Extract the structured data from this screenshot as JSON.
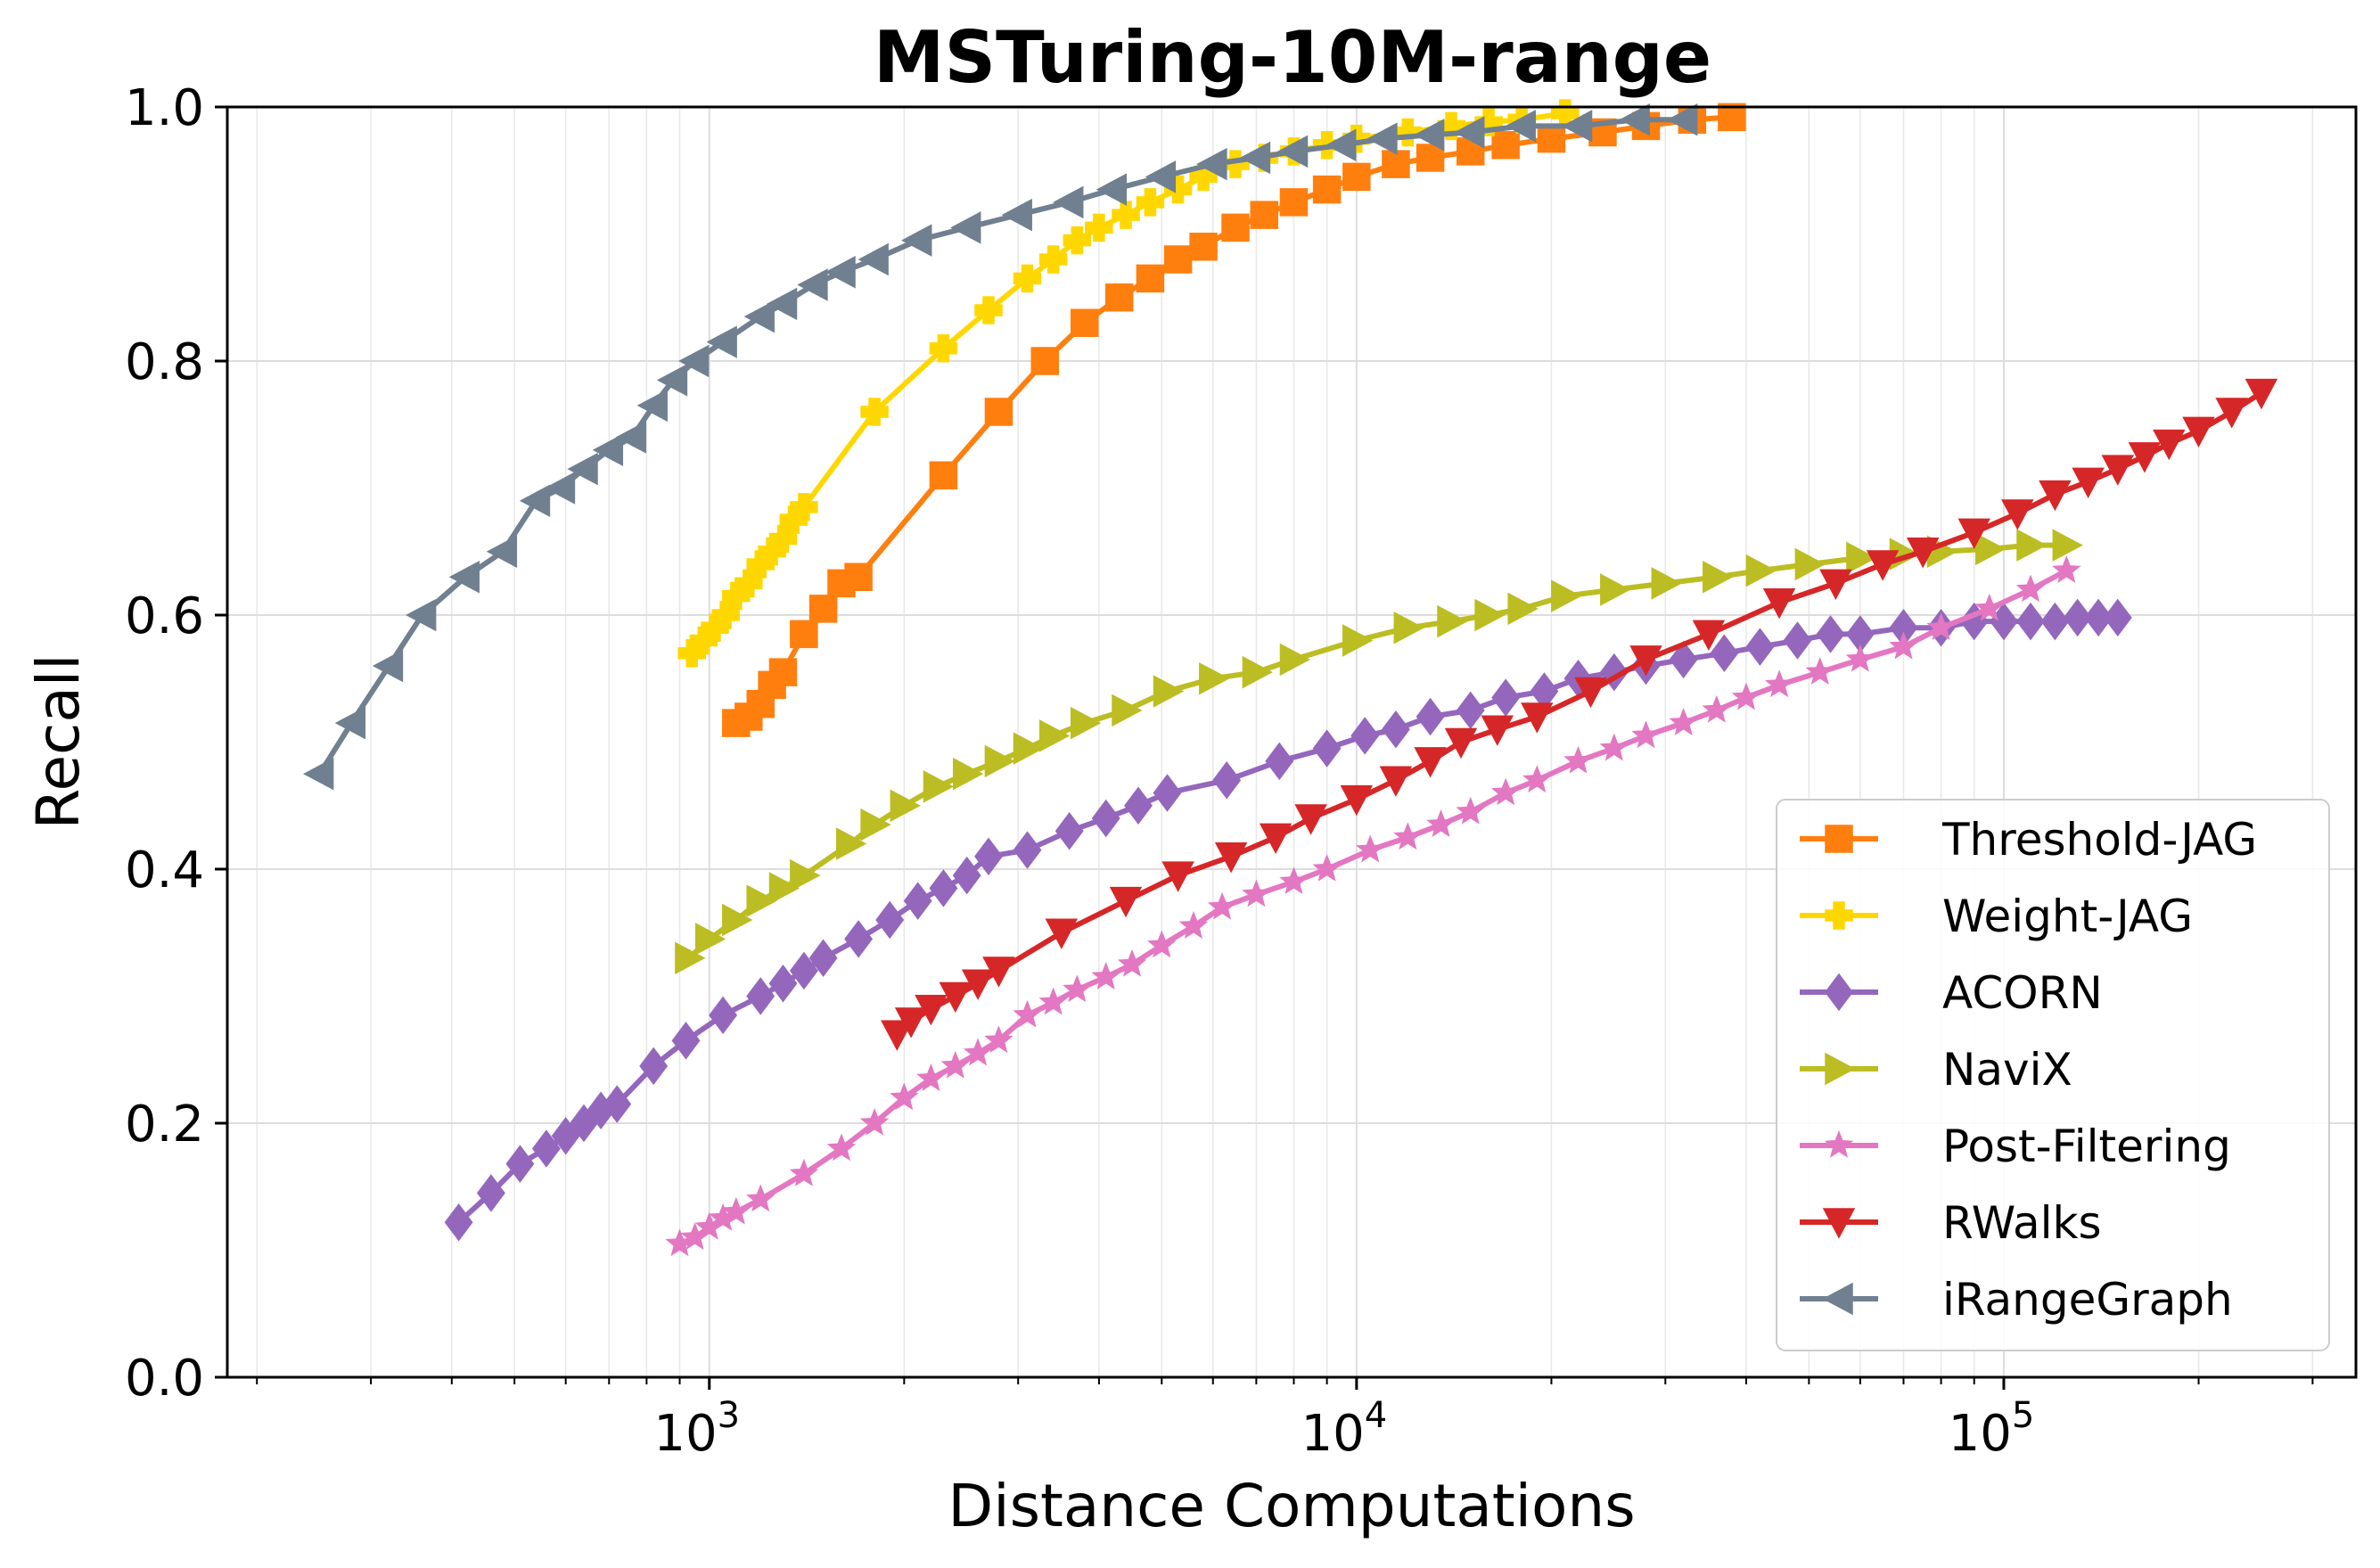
{
  "chart_data": {
    "type": "line",
    "title": "MSTuring-10M-range",
    "xlabel": "Distance Computations",
    "ylabel": "Recall",
    "xscale": "log",
    "xlim": [
      180,
      350000
    ],
    "ylim": [
      0.0,
      1.0
    ],
    "grid": true,
    "legend_position": "lower-right",
    "x_ticks": [
      {
        "base": "10",
        "exp": "3",
        "value": 1000
      },
      {
        "base": "10",
        "exp": "4",
        "value": 10000
      },
      {
        "base": "10",
        "exp": "5",
        "value": 100000
      }
    ],
    "y_ticks": [
      {
        "label": "0.0",
        "value": 0.0
      },
      {
        "label": "0.2",
        "value": 0.2
      },
      {
        "label": "0.4",
        "value": 0.4
      },
      {
        "label": "0.6",
        "value": 0.6
      },
      {
        "label": "0.8",
        "value": 0.8
      },
      {
        "label": "1.0",
        "value": 1.0
      }
    ],
    "series": [
      {
        "name": "Threshold-JAG",
        "color": "#ff7f0e",
        "marker": "square",
        "x": [
          1100,
          1150,
          1200,
          1250,
          1300,
          1400,
          1500,
          1600,
          1700,
          2300,
          2800,
          3300,
          3800,
          4300,
          4800,
          5300,
          5800,
          6500,
          7200,
          8000,
          9000,
          10000,
          11500,
          13000,
          15000,
          17000,
          20000,
          24000,
          28000,
          33000,
          38000
        ],
        "y": [
          0.515,
          0.52,
          0.53,
          0.545,
          0.555,
          0.585,
          0.605,
          0.625,
          0.63,
          0.71,
          0.76,
          0.8,
          0.83,
          0.85,
          0.865,
          0.88,
          0.89,
          0.905,
          0.915,
          0.925,
          0.935,
          0.945,
          0.955,
          0.96,
          0.965,
          0.97,
          0.975,
          0.98,
          0.985,
          0.99,
          0.992
        ]
      },
      {
        "name": "Weight-JAG",
        "color": "#ffd700",
        "marker": "plus",
        "x": [
          940,
          980,
          1020,
          1060,
          1100,
          1150,
          1200,
          1250,
          1300,
          1350,
          1400,
          1800,
          2300,
          2700,
          3100,
          3400,
          3700,
          4000,
          4400,
          4800,
          5300,
          5800,
          6500,
          7200,
          8000,
          9000,
          10000,
          12000,
          14000,
          16000,
          18000,
          21000
        ],
        "y": [
          0.57,
          0.58,
          0.59,
          0.6,
          0.615,
          0.625,
          0.64,
          0.65,
          0.66,
          0.675,
          0.685,
          0.76,
          0.81,
          0.84,
          0.865,
          0.88,
          0.895,
          0.905,
          0.915,
          0.925,
          0.935,
          0.945,
          0.955,
          0.96,
          0.965,
          0.97,
          0.975,
          0.98,
          0.985,
          0.988,
          0.99,
          0.995
        ]
      },
      {
        "name": "ACORN",
        "color": "#9467bd",
        "marker": "diamond",
        "x": [
          410,
          460,
          510,
          560,
          600,
          640,
          680,
          720,
          820,
          920,
          1050,
          1200,
          1300,
          1400,
          1500,
          1700,
          1900,
          2100,
          2300,
          2500,
          2700,
          3100,
          3600,
          4100,
          4600,
          5100,
          6300,
          7600,
          9000,
          10300,
          11500,
          13000,
          15000,
          17000,
          19500,
          22000,
          25000,
          28000,
          32000,
          37000,
          42000,
          48000,
          54000,
          60000,
          70000,
          80000,
          90000,
          100000,
          110000,
          120000,
          130000,
          140000,
          150000
        ],
        "y": [
          0.122,
          0.145,
          0.168,
          0.18,
          0.19,
          0.2,
          0.21,
          0.215,
          0.245,
          0.265,
          0.285,
          0.3,
          0.31,
          0.32,
          0.33,
          0.345,
          0.36,
          0.375,
          0.385,
          0.395,
          0.41,
          0.415,
          0.43,
          0.44,
          0.45,
          0.46,
          0.47,
          0.485,
          0.495,
          0.505,
          0.51,
          0.52,
          0.525,
          0.535,
          0.54,
          0.55,
          0.555,
          0.56,
          0.565,
          0.57,
          0.575,
          0.58,
          0.585,
          0.585,
          0.59,
          0.59,
          0.595,
          0.595,
          0.595,
          0.595,
          0.598,
          0.598,
          0.598
        ]
      },
      {
        "name": "NaviX",
        "color": "#bcbd22",
        "marker": "triangle-right",
        "x": [
          930,
          1000,
          1100,
          1200,
          1300,
          1400,
          1650,
          1800,
          2000,
          2250,
          2500,
          2800,
          3100,
          3400,
          3800,
          4400,
          5100,
          6000,
          7000,
          8000,
          10000,
          12000,
          14000,
          16000,
          18000,
          21000,
          25000,
          30000,
          36000,
          42000,
          50000,
          60000,
          70000,
          80000,
          95000,
          110000,
          125000
        ],
        "y": [
          0.33,
          0.345,
          0.36,
          0.375,
          0.385,
          0.395,
          0.42,
          0.435,
          0.45,
          0.465,
          0.475,
          0.485,
          0.495,
          0.505,
          0.515,
          0.525,
          0.54,
          0.55,
          0.555,
          0.565,
          0.58,
          0.59,
          0.595,
          0.6,
          0.605,
          0.615,
          0.62,
          0.625,
          0.63,
          0.635,
          0.64,
          0.645,
          0.648,
          0.65,
          0.652,
          0.655,
          0.655
        ]
      },
      {
        "name": "Post-Filtering",
        "color": "#e377c2",
        "marker": "star",
        "x": [
          900,
          950,
          1000,
          1050,
          1100,
          1200,
          1400,
          1600,
          1800,
          2000,
          2200,
          2400,
          2600,
          2800,
          3100,
          3400,
          3700,
          4100,
          4500,
          5000,
          5600,
          6200,
          7000,
          8000,
          9000,
          10500,
          12000,
          13500,
          15000,
          17000,
          19000,
          22000,
          25000,
          28000,
          32000,
          36000,
          40000,
          45000,
          52000,
          60000,
          70000,
          80000,
          95000,
          110000,
          125000
        ],
        "y": [
          0.105,
          0.11,
          0.118,
          0.125,
          0.13,
          0.14,
          0.16,
          0.18,
          0.2,
          0.22,
          0.235,
          0.245,
          0.255,
          0.265,
          0.285,
          0.295,
          0.305,
          0.315,
          0.325,
          0.34,
          0.355,
          0.37,
          0.38,
          0.39,
          0.4,
          0.415,
          0.425,
          0.435,
          0.445,
          0.46,
          0.47,
          0.485,
          0.495,
          0.505,
          0.515,
          0.525,
          0.535,
          0.545,
          0.555,
          0.565,
          0.575,
          0.59,
          0.605,
          0.62,
          0.635
        ]
      },
      {
        "name": "RWalks",
        "color": "#d62728",
        "marker": "triangle-down",
        "x": [
          1950,
          2050,
          2200,
          2400,
          2600,
          2800,
          3500,
          4400,
          5300,
          6400,
          7500,
          8500,
          10000,
          11500,
          13000,
          14500,
          16500,
          19000,
          23000,
          28000,
          35000,
          45000,
          55000,
          65000,
          75000,
          90000,
          105000,
          120000,
          135000,
          150000,
          165000,
          180000,
          200000,
          225000,
          250000
        ],
        "y": [
          0.27,
          0.28,
          0.29,
          0.3,
          0.31,
          0.32,
          0.35,
          0.375,
          0.395,
          0.41,
          0.425,
          0.44,
          0.455,
          0.47,
          0.485,
          0.5,
          0.51,
          0.52,
          0.54,
          0.565,
          0.585,
          0.61,
          0.625,
          0.64,
          0.65,
          0.665,
          0.68,
          0.695,
          0.705,
          0.715,
          0.725,
          0.735,
          0.745,
          0.76,
          0.775
        ]
      },
      {
        "name": "iRangeGraph",
        "color": "#708090",
        "marker": "triangle-left",
        "x": [
          250,
          280,
          320,
          360,
          420,
          480,
          540,
          590,
          640,
          700,
          760,
          820,
          880,
          950,
          1050,
          1200,
          1300,
          1450,
          1600,
          1800,
          2100,
          2500,
          3000,
          3600,
          4200,
          5000,
          6000,
          7000,
          8000,
          9500,
          11000,
          13000,
          15000,
          18000,
          22000,
          27000,
          32000
        ],
        "y": [
          0.475,
          0.515,
          0.56,
          0.6,
          0.63,
          0.65,
          0.69,
          0.7,
          0.715,
          0.73,
          0.74,
          0.765,
          0.785,
          0.8,
          0.815,
          0.835,
          0.845,
          0.86,
          0.87,
          0.88,
          0.895,
          0.905,
          0.915,
          0.925,
          0.935,
          0.945,
          0.955,
          0.96,
          0.965,
          0.97,
          0.975,
          0.978,
          0.98,
          0.985,
          0.985,
          0.99,
          0.99
        ]
      }
    ]
  }
}
